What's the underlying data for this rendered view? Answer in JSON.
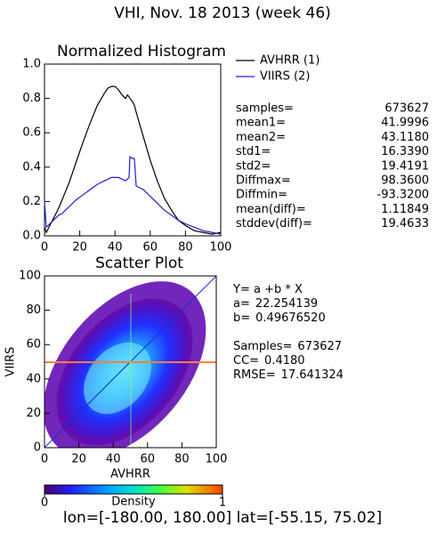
{
  "title": "VHI,  Nov. 18 2013 (week 46)",
  "chart_data": [
    {
      "type": "line",
      "title": "Normalized Histogram",
      "x": [
        0,
        1,
        2,
        4,
        6,
        8,
        10,
        14,
        18,
        22,
        26,
        30,
        34,
        36,
        38,
        40,
        42,
        44,
        46,
        47,
        48,
        48.5,
        50,
        51,
        52,
        54,
        56,
        60,
        64,
        68,
        72,
        76,
        80,
        85,
        90,
        95,
        100
      ],
      "series": [
        {
          "name": "AVHRR (1)",
          "color": "#000000",
          "values": [
            0.05,
            0.02,
            0.04,
            0.08,
            0.12,
            0.16,
            0.21,
            0.31,
            0.43,
            0.55,
            0.66,
            0.76,
            0.83,
            0.86,
            0.87,
            0.87,
            0.85,
            0.82,
            0.8,
            0.82,
            0.81,
            0.8,
            0.78,
            0.76,
            0.72,
            0.65,
            0.58,
            0.44,
            0.32,
            0.22,
            0.15,
            0.09,
            0.06,
            0.03,
            0.02,
            0.01,
            0.02
          ]
        },
        {
          "name": "VIIRS (2)",
          "color": "#2020d0",
          "values": [
            0.2,
            0.05,
            0.06,
            0.08,
            0.1,
            0.12,
            0.13,
            0.17,
            0.21,
            0.24,
            0.27,
            0.3,
            0.32,
            0.33,
            0.34,
            0.34,
            0.34,
            0.33,
            0.32,
            0.33,
            0.34,
            0.46,
            0.45,
            0.45,
            0.29,
            0.28,
            0.27,
            0.23,
            0.19,
            0.15,
            0.12,
            0.09,
            0.07,
            0.05,
            0.03,
            0.02,
            0.01
          ]
        }
      ],
      "xlim": [
        0,
        100
      ],
      "xticks": [
        0,
        20,
        40,
        60,
        80,
        100
      ],
      "ylim": [
        0,
        1
      ],
      "yticks": [
        {
          "value": 0,
          "label": "0.0"
        },
        0.2,
        0.4,
        0.6,
        0.8,
        {
          "value": 1,
          "label": "1.0"
        }
      ]
    },
    {
      "type": "scatter",
      "title": "Scatter Plot",
      "xlabel": "AVHRR",
      "ylabel": "VIIRS",
      "xlim": [
        0,
        100
      ],
      "xticks": [
        0,
        20,
        40,
        60,
        80,
        100
      ],
      "ylim": [
        0,
        100
      ],
      "yticks": [
        0,
        20,
        40,
        60,
        80,
        100
      ],
      "colorbar": {
        "label": "Density",
        "ticks": [
          0,
          1
        ]
      }
    }
  ],
  "hist_stats": [
    {
      "label": "samples=",
      "value": "673627"
    },
    {
      "label": "mean1=",
      "value": "41.9996"
    },
    {
      "label": "mean2=",
      "value": "43.1180"
    },
    {
      "label": "std1=",
      "value": "16.3390"
    },
    {
      "label": "std2=",
      "value": "19.4191"
    },
    {
      "label": "Diffmax=",
      "value": "98.3600"
    },
    {
      "label": "Diffmin=",
      "value": "-93.3200"
    },
    {
      "label": "mean(diff)=",
      "value": "1.11849"
    },
    {
      "label": "stddev(diff)=",
      "value": "19.4633"
    }
  ],
  "fit_stats": [
    {
      "label": "Y= a +b * X"
    },
    {
      "label": "a=",
      "value": "22.254139"
    },
    {
      "label": "b=",
      "value": "0.49676520"
    },
    {
      "label": "Samples=",
      "value": "673627"
    },
    {
      "label": "CC=",
      "value": "0.4180"
    },
    {
      "label": "RMSE=",
      "value": "17.641324"
    }
  ],
  "footer": "lon=[-180.00, 180.00] lat=[-55.15, 75.02]"
}
